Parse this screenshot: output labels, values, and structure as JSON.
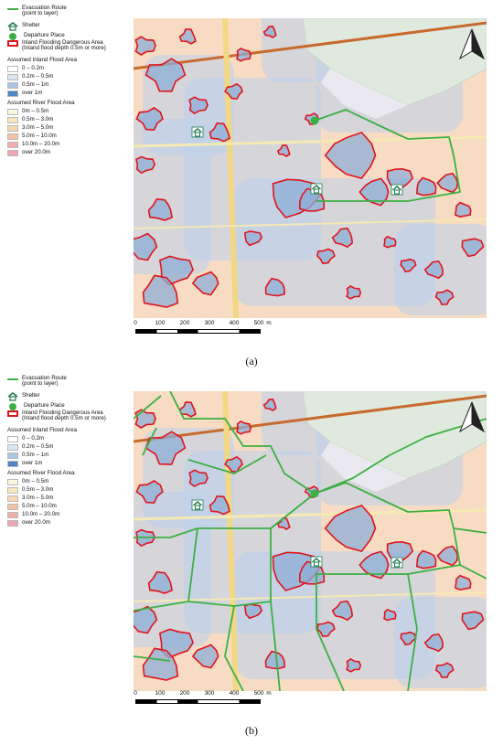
{
  "legend": {
    "evacuation_route": "Evacuation Route\n(point to layer)",
    "shelter": "Shelter",
    "departure": "Departure Place",
    "inland_danger": "Inland Flooding Dangerous Area\n(Inland flood depth 0.5m or more)",
    "inland_title": "Assumed Inland Flood Area",
    "inland_classes": [
      {
        "label": "0 – 0.2m",
        "color": "#ffffff"
      },
      {
        "label": "0.2m – 0.5m",
        "color": "#dbe6f4"
      },
      {
        "label": "0.5m – 1m",
        "color": "#a9c4e4"
      },
      {
        "label": "over 1m",
        "color": "#4f86c2"
      }
    ],
    "river_title": "Assumed River Flood Area",
    "river_classes": [
      {
        "label": "0m – 0.5m",
        "color": "#fbf8dc"
      },
      {
        "label": "0.5m – 3.0m",
        "color": "#f8e6bf"
      },
      {
        "label": "3.0m – 5.0m",
        "color": "#f8d8b2"
      },
      {
        "label": "5.0m – 10.0m",
        "color": "#f4c2a3"
      },
      {
        "label": "10.0m – 20.0m",
        "color": "#f1aeaa"
      },
      {
        "label": "over 20.0m",
        "color": "#f0a4b6"
      }
    ]
  },
  "scale": {
    "labels": [
      "0",
      "100",
      "200",
      "300",
      "400",
      "500"
    ],
    "unit": "m"
  },
  "captions": {
    "a": "(a)",
    "b": "(b)"
  },
  "colors": {
    "route": "#3cb043",
    "danger": "#e0141c",
    "base": "#f7dcc3",
    "flood": "#bcd2ec",
    "park": "#dfe9de"
  }
}
